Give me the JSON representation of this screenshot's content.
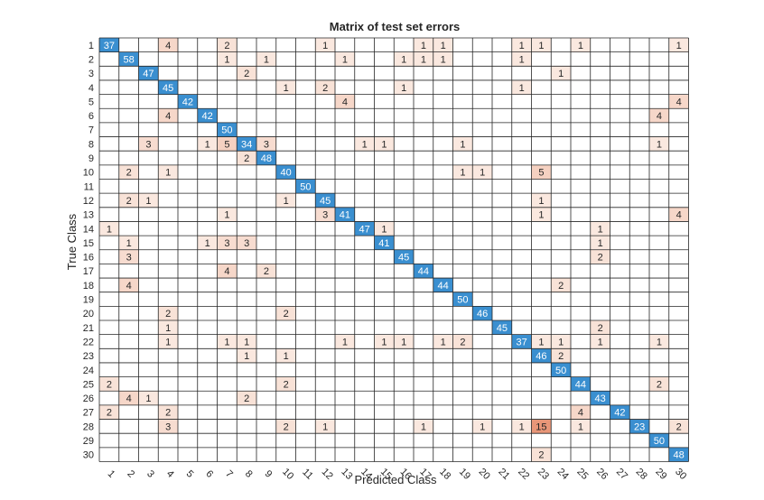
{
  "chart_data": {
    "type": "heatmap",
    "title": "Matrix of test set errors",
    "xlabel": "Predicted Class",
    "ylabel": "True Class",
    "classes": [
      "1",
      "2",
      "3",
      "4",
      "5",
      "6",
      "7",
      "8",
      "9",
      "10",
      "11",
      "12",
      "13",
      "14",
      "15",
      "16",
      "17",
      "18",
      "19",
      "20",
      "21",
      "22",
      "23",
      "24",
      "25",
      "26",
      "27",
      "28",
      "29",
      "30"
    ],
    "diagonal_color": "#3a8fd0",
    "offdiag_color": "#fbeee6",
    "grid": true,
    "cells": [
      {
        "row": 1,
        "col": 1,
        "value": 37
      },
      {
        "row": 1,
        "col": 4,
        "value": 4
      },
      {
        "row": 1,
        "col": 7,
        "value": 2
      },
      {
        "row": 1,
        "col": 12,
        "value": 1
      },
      {
        "row": 1,
        "col": 17,
        "value": 1
      },
      {
        "row": 1,
        "col": 18,
        "value": 1
      },
      {
        "row": 1,
        "col": 22,
        "value": 1
      },
      {
        "row": 1,
        "col": 23,
        "value": 1
      },
      {
        "row": 1,
        "col": 25,
        "value": 1
      },
      {
        "row": 1,
        "col": 30,
        "value": 1
      },
      {
        "row": 2,
        "col": 2,
        "value": 58
      },
      {
        "row": 2,
        "col": 7,
        "value": 1
      },
      {
        "row": 2,
        "col": 9,
        "value": 1
      },
      {
        "row": 2,
        "col": 13,
        "value": 1
      },
      {
        "row": 2,
        "col": 16,
        "value": 1
      },
      {
        "row": 2,
        "col": 17,
        "value": 1
      },
      {
        "row": 2,
        "col": 18,
        "value": 1
      },
      {
        "row": 2,
        "col": 22,
        "value": 1
      },
      {
        "row": 3,
        "col": 3,
        "value": 47
      },
      {
        "row": 3,
        "col": 8,
        "value": 2
      },
      {
        "row": 3,
        "col": 24,
        "value": 1
      },
      {
        "row": 4,
        "col": 4,
        "value": 45
      },
      {
        "row": 4,
        "col": 10,
        "value": 1
      },
      {
        "row": 4,
        "col": 12,
        "value": 2
      },
      {
        "row": 4,
        "col": 16,
        "value": 1
      },
      {
        "row": 4,
        "col": 22,
        "value": 1
      },
      {
        "row": 5,
        "col": 5,
        "value": 42
      },
      {
        "row": 5,
        "col": 13,
        "value": 4
      },
      {
        "row": 5,
        "col": 30,
        "value": 4
      },
      {
        "row": 6,
        "col": 4,
        "value": 4
      },
      {
        "row": 6,
        "col": 6,
        "value": 42
      },
      {
        "row": 6,
        "col": 29,
        "value": 4
      },
      {
        "row": 7,
        "col": 7,
        "value": 50
      },
      {
        "row": 8,
        "col": 3,
        "value": 3
      },
      {
        "row": 8,
        "col": 6,
        "value": 1
      },
      {
        "row": 8,
        "col": 7,
        "value": 5
      },
      {
        "row": 8,
        "col": 8,
        "value": 34
      },
      {
        "row": 8,
        "col": 9,
        "value": 3
      },
      {
        "row": 8,
        "col": 14,
        "value": 1
      },
      {
        "row": 8,
        "col": 15,
        "value": 1
      },
      {
        "row": 8,
        "col": 19,
        "value": 1
      },
      {
        "row": 8,
        "col": 29,
        "value": 1
      },
      {
        "row": 9,
        "col": 8,
        "value": 2
      },
      {
        "row": 9,
        "col": 9,
        "value": 48
      },
      {
        "row": 10,
        "col": 2,
        "value": 2
      },
      {
        "row": 10,
        "col": 4,
        "value": 1
      },
      {
        "row": 10,
        "col": 10,
        "value": 40
      },
      {
        "row": 10,
        "col": 19,
        "value": 1
      },
      {
        "row": 10,
        "col": 20,
        "value": 1
      },
      {
        "row": 10,
        "col": 23,
        "value": 5
      },
      {
        "row": 11,
        "col": 11,
        "value": 50
      },
      {
        "row": 12,
        "col": 2,
        "value": 2
      },
      {
        "row": 12,
        "col": 3,
        "value": 1
      },
      {
        "row": 12,
        "col": 10,
        "value": 1
      },
      {
        "row": 12,
        "col": 12,
        "value": 45
      },
      {
        "row": 12,
        "col": 23,
        "value": 1
      },
      {
        "row": 13,
        "col": 7,
        "value": 1
      },
      {
        "row": 13,
        "col": 12,
        "value": 3
      },
      {
        "row": 13,
        "col": 13,
        "value": 41
      },
      {
        "row": 13,
        "col": 23,
        "value": 1
      },
      {
        "row": 13,
        "col": 30,
        "value": 4
      },
      {
        "row": 14,
        "col": 1,
        "value": 1
      },
      {
        "row": 14,
        "col": 14,
        "value": 47
      },
      {
        "row": 14,
        "col": 15,
        "value": 1
      },
      {
        "row": 14,
        "col": 26,
        "value": 1
      },
      {
        "row": 15,
        "col": 2,
        "value": 1
      },
      {
        "row": 15,
        "col": 6,
        "value": 1
      },
      {
        "row": 15,
        "col": 7,
        "value": 3
      },
      {
        "row": 15,
        "col": 8,
        "value": 3
      },
      {
        "row": 15,
        "col": 15,
        "value": 41
      },
      {
        "row": 15,
        "col": 26,
        "value": 1
      },
      {
        "row": 16,
        "col": 2,
        "value": 3
      },
      {
        "row": 16,
        "col": 16,
        "value": 45
      },
      {
        "row": 16,
        "col": 26,
        "value": 2
      },
      {
        "row": 17,
        "col": 7,
        "value": 4
      },
      {
        "row": 17,
        "col": 9,
        "value": 2
      },
      {
        "row": 17,
        "col": 17,
        "value": 44
      },
      {
        "row": 18,
        "col": 2,
        "value": 4
      },
      {
        "row": 18,
        "col": 18,
        "value": 44
      },
      {
        "row": 18,
        "col": 24,
        "value": 2
      },
      {
        "row": 19,
        "col": 19,
        "value": 50
      },
      {
        "row": 20,
        "col": 4,
        "value": 2
      },
      {
        "row": 20,
        "col": 10,
        "value": 2
      },
      {
        "row": 20,
        "col": 20,
        "value": 46
      },
      {
        "row": 21,
        "col": 4,
        "value": 1
      },
      {
        "row": 21,
        "col": 21,
        "value": 45
      },
      {
        "row": 21,
        "col": 26,
        "value": 2
      },
      {
        "row": 22,
        "col": 4,
        "value": 1
      },
      {
        "row": 22,
        "col": 7,
        "value": 1
      },
      {
        "row": 22,
        "col": 8,
        "value": 1
      },
      {
        "row": 22,
        "col": 13,
        "value": 1
      },
      {
        "row": 22,
        "col": 15,
        "value": 1
      },
      {
        "row": 22,
        "col": 16,
        "value": 1
      },
      {
        "row": 22,
        "col": 18,
        "value": 1
      },
      {
        "row": 22,
        "col": 19,
        "value": 2
      },
      {
        "row": 22,
        "col": 22,
        "value": 37
      },
      {
        "row": 22,
        "col": 23,
        "value": 1
      },
      {
        "row": 22,
        "col": 24,
        "value": 1
      },
      {
        "row": 22,
        "col": 26,
        "value": 1
      },
      {
        "row": 22,
        "col": 29,
        "value": 1
      },
      {
        "row": 23,
        "col": 8,
        "value": 1
      },
      {
        "row": 23,
        "col": 10,
        "value": 1
      },
      {
        "row": 23,
        "col": 23,
        "value": 46
      },
      {
        "row": 23,
        "col": 24,
        "value": 2
      },
      {
        "row": 24,
        "col": 24,
        "value": 50
      },
      {
        "row": 25,
        "col": 1,
        "value": 2
      },
      {
        "row": 25,
        "col": 10,
        "value": 2
      },
      {
        "row": 25,
        "col": 25,
        "value": 44
      },
      {
        "row": 25,
        "col": 29,
        "value": 2
      },
      {
        "row": 26,
        "col": 2,
        "value": 4
      },
      {
        "row": 26,
        "col": 3,
        "value": 1
      },
      {
        "row": 26,
        "col": 8,
        "value": 2
      },
      {
        "row": 26,
        "col": 26,
        "value": 43
      },
      {
        "row": 27,
        "col": 1,
        "value": 2
      },
      {
        "row": 27,
        "col": 4,
        "value": 2
      },
      {
        "row": 27,
        "col": 25,
        "value": 4
      },
      {
        "row": 27,
        "col": 27,
        "value": 42
      },
      {
        "row": 28,
        "col": 4,
        "value": 3
      },
      {
        "row": 28,
        "col": 10,
        "value": 2
      },
      {
        "row": 28,
        "col": 12,
        "value": 1
      },
      {
        "row": 28,
        "col": 17,
        "value": 1
      },
      {
        "row": 28,
        "col": 20,
        "value": 1
      },
      {
        "row": 28,
        "col": 22,
        "value": 1
      },
      {
        "row": 28,
        "col": 23,
        "value": 15
      },
      {
        "row": 28,
        "col": 25,
        "value": 1
      },
      {
        "row": 28,
        "col": 28,
        "value": 23
      },
      {
        "row": 28,
        "col": 30,
        "value": 2
      },
      {
        "row": 29,
        "col": 29,
        "value": 50
      },
      {
        "row": 30,
        "col": 23,
        "value": 2
      },
      {
        "row": 30,
        "col": 30,
        "value": 48
      }
    ]
  }
}
